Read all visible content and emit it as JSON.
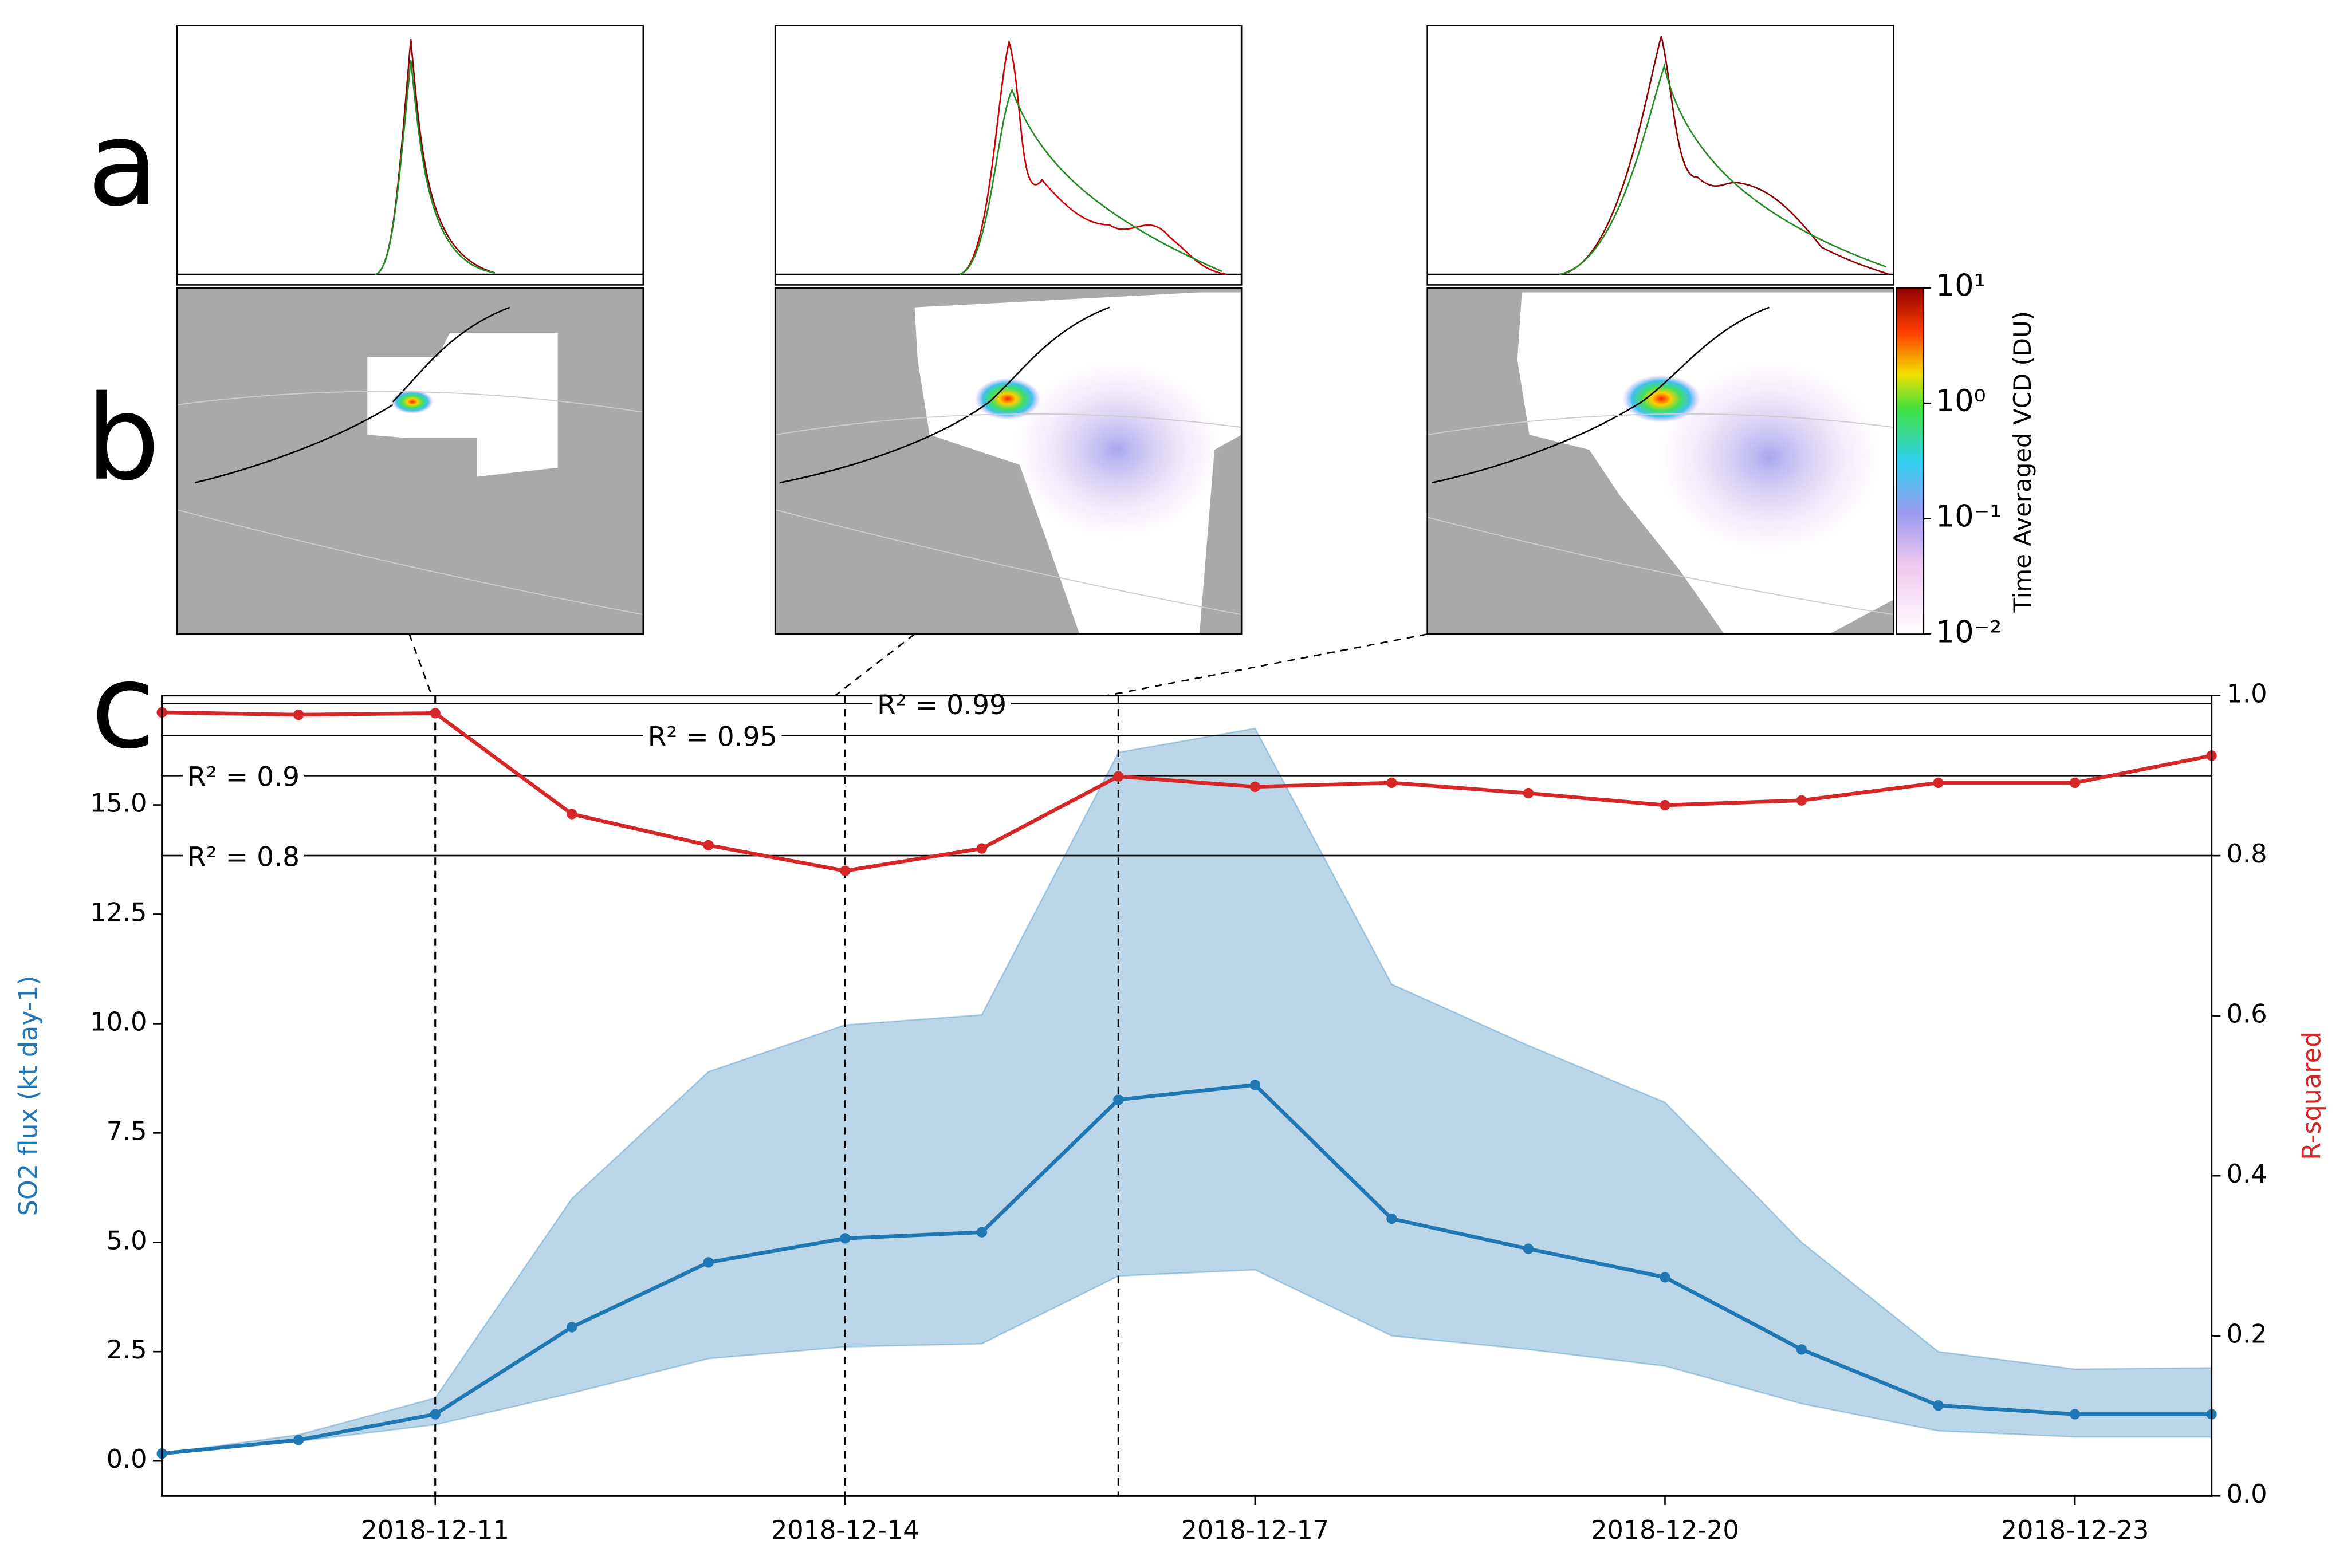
{
  "panel_labels": [
    "a",
    "b",
    "c"
  ],
  "colorbar": {
    "label": "Time Averaged VCD (DU)",
    "ticks": [
      {
        "value": 10,
        "label": "10¹"
      },
      {
        "value": 1,
        "label": "10⁰"
      },
      {
        "value": 0.1,
        "label": "10⁻¹"
      },
      {
        "value": 0.01,
        "label": "10⁻²"
      }
    ]
  },
  "chart_data": {
    "type": "line",
    "x": [
      "2018-12-09",
      "2018-12-10",
      "2018-12-11",
      "2018-12-12",
      "2018-12-13",
      "2018-12-14",
      "2018-12-15",
      "2018-12-16",
      "2018-12-17",
      "2018-12-18",
      "2018-12-19",
      "2018-12-20",
      "2018-12-21",
      "2018-12-22",
      "2018-12-23",
      "2018-12-24"
    ],
    "xlim": [
      "2018-12-09",
      "2018-12-24"
    ],
    "xticks": [
      "2018-12-11",
      "2018-12-14",
      "2018-12-17",
      "2018-12-20",
      "2018-12-23"
    ],
    "ylabel": "SO2 flux (kt day-1)",
    "y2label": "R-squared",
    "ylim": [
      -0.8,
      17.5
    ],
    "yticks": [
      {
        "value": 0,
        "label": "0.0"
      },
      2.5,
      {
        "value": 5,
        "label": "5.0"
      },
      7.5,
      {
        "value": 10,
        "label": "10.0"
      },
      12.5,
      {
        "value": 15,
        "label": "15.0"
      }
    ],
    "y2lim": [
      0,
      1
    ],
    "y2ticks": [
      {
        "value": 0,
        "label": "0.0"
      },
      0.2,
      0.4,
      0.6,
      0.8,
      {
        "value": 1,
        "label": "1.0"
      }
    ],
    "series": [
      {
        "name": "SO2 flux",
        "color": "#1f77b4",
        "values": [
          0.17,
          0.48,
          1.07,
          3.06,
          4.54,
          5.09,
          5.23,
          8.26,
          8.6,
          5.54,
          4.85,
          4.2,
          2.55,
          1.27,
          1.07,
          1.07
        ]
      },
      {
        "name": "R-squared",
        "color": "#d62728",
        "axis": "y2",
        "values": [
          0.979,
          0.976,
          0.978,
          0.852,
          0.813,
          0.781,
          0.809,
          0.899,
          0.886,
          0.891,
          0.878,
          0.863,
          0.869,
          0.891,
          0.891,
          0.925
        ]
      }
    ],
    "band": {
      "color": "#1f77b4",
      "upper": [
        0.17,
        0.6,
        1.44,
        6.0,
        8.9,
        9.97,
        10.2,
        16.2,
        16.75,
        10.9,
        9.5,
        8.2,
        5.0,
        2.5,
        2.1,
        2.13
      ],
      "lower": [
        0.17,
        0.45,
        0.83,
        1.55,
        2.34,
        2.61,
        2.68,
        4.23,
        4.37,
        2.86,
        2.55,
        2.17,
        1.31,
        0.69,
        0.55,
        0.55
      ]
    },
    "r2_lines": [
      {
        "value": 0.99,
        "label": "R² = 0.99"
      },
      {
        "value": 0.95,
        "label": "R² = 0.95"
      },
      {
        "value": 0.9,
        "label": "R² = 0.9"
      },
      {
        "value": 0.8,
        "label": "R² = 0.8"
      }
    ],
    "vlines": [
      "2018-12-11",
      "2018-12-14",
      "2018-12-16"
    ]
  }
}
